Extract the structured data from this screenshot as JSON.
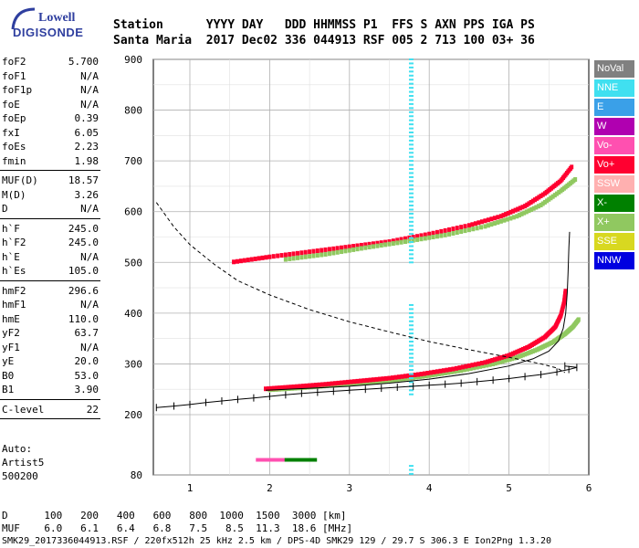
{
  "logo": {
    "line1": "Lowell",
    "line2": "DIGISONDE"
  },
  "header": {
    "row1": "Station      YYYY DAY   DDD HHMMSS P1  FFS S AXN PPS IGA PS",
    "row2": "Santa Maria  2017 Dec02 336 044913 RSF 005 2 713 100 03+ 36"
  },
  "params_group1": [
    {
      "k": "foF2",
      "v": "5.700"
    },
    {
      "k": "foF1",
      "v": "N/A"
    },
    {
      "k": "foF1p",
      "v": "N/A"
    },
    {
      "k": "foE",
      "v": "N/A"
    },
    {
      "k": "foEp",
      "v": "0.39"
    },
    {
      "k": "fxI",
      "v": "6.05"
    },
    {
      "k": "foEs",
      "v": "2.23"
    },
    {
      "k": "fmin",
      "v": "1.98"
    }
  ],
  "params_group2": [
    {
      "k": "MUF(D)",
      "v": "18.57"
    },
    {
      "k": "M(D)",
      "v": "3.26"
    },
    {
      "k": "D",
      "v": "N/A"
    }
  ],
  "params_group3": [
    {
      "k": "h`F",
      "v": "245.0"
    },
    {
      "k": "h`F2",
      "v": "245.0"
    },
    {
      "k": "h`E",
      "v": "N/A"
    },
    {
      "k": "h`Es",
      "v": "105.0"
    }
  ],
  "params_group4": [
    {
      "k": "hmF2",
      "v": "296.6"
    },
    {
      "k": "hmF1",
      "v": "N/A"
    },
    {
      "k": "hmE",
      "v": "110.0"
    },
    {
      "k": "yF2",
      "v": "63.7"
    },
    {
      "k": "yF1",
      "v": "N/A"
    },
    {
      "k": "yE",
      "v": "20.0"
    },
    {
      "k": "B0",
      "v": "53.0"
    },
    {
      "k": "B1",
      "v": "3.90"
    }
  ],
  "params_group5": [
    {
      "k": "C-level",
      "v": "22"
    }
  ],
  "auto": {
    "line1": "Auto:",
    "line2": "Artist5",
    "line3": "500200"
  },
  "legend": [
    {
      "label": "NoVal",
      "color": "#808080"
    },
    {
      "label": "NNE",
      "color": "#40e0f0"
    },
    {
      "label": "E",
      "color": "#3aa0e8"
    },
    {
      "label": "W",
      "color": "#b000b0"
    },
    {
      "label": "Vo-",
      "color": "#ff50b0"
    },
    {
      "label": "Vo+",
      "color": "#ff0030"
    },
    {
      "label": "SSW",
      "color": "#ffb0b0"
    },
    {
      "label": "X-",
      "color": "#008000"
    },
    {
      "label": "X+",
      "color": "#90c860"
    },
    {
      "label": "SSE",
      "color": "#d8d820"
    },
    {
      "label": "NNW",
      "color": "#0000e0"
    }
  ],
  "footer": {
    "d_label": "D",
    "d_values": [
      "100",
      "200",
      "400",
      "600",
      "800",
      "1000",
      "1500",
      "3000"
    ],
    "d_unit": "[km]",
    "muf_label": "MUF",
    "muf_values": [
      "6.0",
      "6.1",
      "6.4",
      "6.8",
      "7.5",
      "8.5",
      "11.3",
      "18.6"
    ],
    "muf_unit": "[MHz]",
    "info": "SMK29_2017336044913.RSF / 220fx512h 25 kHz 2.5 km / DPS-4D SMK29 129 / 29.7 S 306.3 E Ion2Png 1.3.20"
  },
  "chart_data": {
    "type": "scatter",
    "x_tick_labels": [
      "1",
      "2",
      "3",
      "4",
      "5",
      "6"
    ],
    "y_tick_labels": [
      "80",
      "200",
      "300",
      "400",
      "500",
      "600",
      "700",
      "800",
      "900"
    ],
    "xlim": [
      0.55,
      6.0
    ],
    "ylim": [
      80,
      900
    ],
    "grid": true,
    "legend_placement": "right",
    "x_series": [
      {
        "name": "X+",
        "color": "#90c860",
        "points": [
          [
            2.0,
            248
          ],
          [
            2.4,
            252
          ],
          [
            2.8,
            257
          ],
          [
            3.2,
            262
          ],
          [
            3.6,
            268
          ],
          [
            4.0,
            276
          ],
          [
            4.4,
            286
          ],
          [
            4.8,
            299
          ],
          [
            5.1,
            312
          ],
          [
            5.35,
            327
          ],
          [
            5.55,
            342
          ],
          [
            5.7,
            358
          ],
          [
            5.8,
            372
          ],
          [
            5.88,
            388
          ]
        ]
      },
      {
        "name": "Vo+",
        "color": "#ff0030",
        "points": [
          [
            1.95,
            250
          ],
          [
            2.3,
            254
          ],
          [
            2.7,
            259
          ],
          [
            3.1,
            265
          ],
          [
            3.5,
            271
          ],
          [
            3.9,
            279
          ],
          [
            4.3,
            289
          ],
          [
            4.7,
            302
          ],
          [
            5.0,
            316
          ],
          [
            5.25,
            333
          ],
          [
            5.45,
            352
          ],
          [
            5.58,
            372
          ],
          [
            5.65,
            395
          ],
          [
            5.69,
            420
          ],
          [
            5.71,
            445
          ]
        ]
      },
      {
        "name": "upper-Vo+",
        "color": "#ff0030",
        "points": [
          [
            1.55,
            500
          ],
          [
            2.0,
            510
          ],
          [
            2.5,
            520
          ],
          [
            3.0,
            530
          ],
          [
            3.5,
            540
          ],
          [
            4.0,
            555
          ],
          [
            4.5,
            572
          ],
          [
            4.9,
            590
          ],
          [
            5.2,
            610
          ],
          [
            5.45,
            635
          ],
          [
            5.65,
            660
          ],
          [
            5.8,
            690
          ]
        ]
      },
      {
        "name": "upper-X+",
        "color": "#90c860",
        "points": [
          [
            2.2,
            505
          ],
          [
            2.7,
            515
          ],
          [
            3.2,
            528
          ],
          [
            3.7,
            540
          ],
          [
            4.2,
            553
          ],
          [
            4.7,
            570
          ],
          [
            5.1,
            590
          ],
          [
            5.4,
            612
          ],
          [
            5.65,
            640
          ],
          [
            5.85,
            665
          ]
        ]
      }
    ],
    "profile_curve": [
      [
        0.58,
        214
      ],
      [
        0.8,
        217
      ],
      [
        1.0,
        220
      ],
      [
        1.2,
        224
      ],
      [
        1.4,
        227
      ],
      [
        1.6,
        230
      ],
      [
        1.8,
        233
      ],
      [
        2.0,
        236
      ],
      [
        2.2,
        239
      ],
      [
        2.4,
        242
      ],
      [
        2.6,
        244
      ],
      [
        2.8,
        246
      ],
      [
        3.0,
        248
      ],
      [
        3.2,
        250
      ],
      [
        3.4,
        252
      ],
      [
        3.6,
        254
      ],
      [
        3.8,
        256
      ],
      [
        4.0,
        258
      ],
      [
        4.2,
        260
      ],
      [
        4.4,
        262
      ],
      [
        4.6,
        265
      ],
      [
        4.8,
        268
      ],
      [
        5.0,
        271
      ],
      [
        5.2,
        275
      ],
      [
        5.4,
        279
      ],
      [
        5.6,
        284
      ],
      [
        5.75,
        289
      ],
      [
        5.85,
        293
      ],
      [
        5.7,
        296
      ]
    ],
    "trace_curve": [
      [
        1.95,
        248
      ],
      [
        2.5,
        252
      ],
      [
        3.0,
        256
      ],
      [
        3.5,
        262
      ],
      [
        4.0,
        270
      ],
      [
        4.5,
        281
      ],
      [
        5.0,
        296
      ],
      [
        5.3,
        310
      ],
      [
        5.5,
        325
      ],
      [
        5.62,
        345
      ],
      [
        5.68,
        370
      ],
      [
        5.71,
        400
      ],
      [
        5.73,
        440
      ],
      [
        5.74,
        480
      ],
      [
        5.75,
        530
      ],
      [
        5.76,
        560
      ]
    ],
    "dashed_curve": [
      [
        0.58,
        618
      ],
      [
        0.8,
        570
      ],
      [
        1.0,
        535
      ],
      [
        1.3,
        497
      ],
      [
        1.6,
        464
      ],
      [
        2.0,
        436
      ],
      [
        2.5,
        407
      ],
      [
        3.0,
        383
      ],
      [
        3.5,
        363
      ],
      [
        4.0,
        344
      ],
      [
        4.5,
        328
      ],
      [
        5.0,
        313
      ],
      [
        5.4,
        300
      ],
      [
        5.6,
        292
      ],
      [
        5.7,
        283
      ]
    ]
  }
}
